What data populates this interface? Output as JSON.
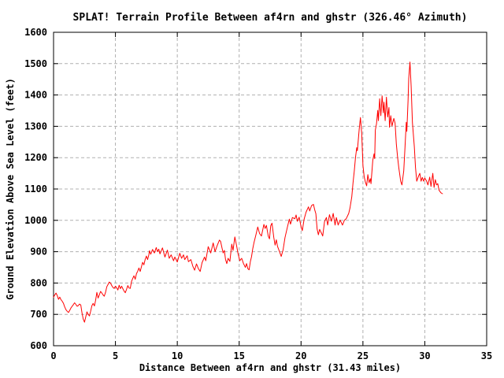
{
  "window": {
    "background": "#ffffff"
  },
  "chart_data": {
    "type": "line",
    "title": "SPLAT! Terrain Profile Between af4rn and ghstr (326.46° Azimuth)",
    "xlabel": "Distance Between af4rn and ghstr (31.43 miles)",
    "ylabel": "Ground Elevation Above Sea Level (feet)",
    "xlim": [
      0,
      35
    ],
    "ylim": [
      600,
      1600
    ],
    "xticks": [
      0,
      5,
      10,
      15,
      20,
      25,
      30,
      35
    ],
    "yticks": [
      600,
      700,
      800,
      900,
      1000,
      1100,
      1200,
      1300,
      1400,
      1500,
      1600
    ],
    "grid": true,
    "legend": "none",
    "colors": {
      "line": "#ff0000",
      "grid": "#b0b0b0",
      "border": "#000000",
      "text": "#000000",
      "background": "#ffffff"
    },
    "total_distance_miles": 31.43,
    "azimuth_deg": 326.46,
    "endpoints": [
      "af4rn",
      "ghstr"
    ],
    "series": [
      {
        "name": "terrain-elevation",
        "points": [
          [
            0,
            755
          ],
          [
            0.1,
            762
          ],
          [
            0.2,
            768
          ],
          [
            0.3,
            760
          ],
          [
            0.4,
            748
          ],
          [
            0.5,
            755
          ],
          [
            0.6,
            747
          ],
          [
            0.7,
            742
          ],
          [
            0.8,
            735
          ],
          [
            0.9,
            724
          ],
          [
            1.0,
            715
          ],
          [
            1.1,
            710
          ],
          [
            1.2,
            706
          ],
          [
            1.3,
            712
          ],
          [
            1.4,
            720
          ],
          [
            1.5,
            726
          ],
          [
            1.6,
            731
          ],
          [
            1.7,
            737
          ],
          [
            1.8,
            732
          ],
          [
            1.9,
            726
          ],
          [
            2.0,
            728
          ],
          [
            2.1,
            733
          ],
          [
            2.2,
            730
          ],
          [
            2.3,
            705
          ],
          [
            2.4,
            685
          ],
          [
            2.5,
            675
          ],
          [
            2.6,
            692
          ],
          [
            2.7,
            708
          ],
          [
            2.8,
            700
          ],
          [
            2.9,
            695
          ],
          [
            3.0,
            710
          ],
          [
            3.1,
            728
          ],
          [
            3.2,
            735
          ],
          [
            3.3,
            727
          ],
          [
            3.4,
            745
          ],
          [
            3.5,
            770
          ],
          [
            3.6,
            752
          ],
          [
            3.7,
            762
          ],
          [
            3.8,
            773
          ],
          [
            3.9,
            768
          ],
          [
            4.0,
            762
          ],
          [
            4.1,
            758
          ],
          [
            4.2,
            770
          ],
          [
            4.3,
            788
          ],
          [
            4.4,
            795
          ],
          [
            4.5,
            803
          ],
          [
            4.6,
            800
          ],
          [
            4.7,
            792
          ],
          [
            4.8,
            786
          ],
          [
            4.9,
            783
          ],
          [
            5.0,
            790
          ],
          [
            5.1,
            785
          ],
          [
            5.2,
            778
          ],
          [
            5.3,
            793
          ],
          [
            5.4,
            782
          ],
          [
            5.5,
            790
          ],
          [
            5.6,
            782
          ],
          [
            5.7,
            774
          ],
          [
            5.8,
            769
          ],
          [
            5.9,
            780
          ],
          [
            6.0,
            792
          ],
          [
            6.1,
            784
          ],
          [
            6.2,
            783
          ],
          [
            6.3,
            805
          ],
          [
            6.4,
            815
          ],
          [
            6.5,
            823
          ],
          [
            6.6,
            812
          ],
          [
            6.7,
            830
          ],
          [
            6.8,
            838
          ],
          [
            6.9,
            848
          ],
          [
            7.0,
            837
          ],
          [
            7.1,
            852
          ],
          [
            7.2,
            866
          ],
          [
            7.3,
            858
          ],
          [
            7.4,
            875
          ],
          [
            7.5,
            886
          ],
          [
            7.6,
            875
          ],
          [
            7.7,
            890
          ],
          [
            7.75,
            903
          ],
          [
            7.85,
            892
          ],
          [
            8.0,
            907
          ],
          [
            8.15,
            896
          ],
          [
            8.3,
            913
          ],
          [
            8.4,
            900
          ],
          [
            8.5,
            908
          ],
          [
            8.6,
            893
          ],
          [
            8.8,
            912
          ],
          [
            9.0,
            883
          ],
          [
            9.2,
            905
          ],
          [
            9.35,
            879
          ],
          [
            9.5,
            890
          ],
          [
            9.7,
            871
          ],
          [
            9.8,
            883
          ],
          [
            10.0,
            867
          ],
          [
            10.2,
            895
          ],
          [
            10.35,
            879
          ],
          [
            10.5,
            890
          ],
          [
            10.6,
            875
          ],
          [
            10.8,
            887
          ],
          [
            10.9,
            868
          ],
          [
            11.1,
            875
          ],
          [
            11.25,
            854
          ],
          [
            11.4,
            841
          ],
          [
            11.55,
            861
          ],
          [
            11.7,
            846
          ],
          [
            11.85,
            837
          ],
          [
            12.0,
            865
          ],
          [
            12.2,
            883
          ],
          [
            12.3,
            871
          ],
          [
            12.5,
            916
          ],
          [
            12.7,
            896
          ],
          [
            12.9,
            928
          ],
          [
            13.05,
            900
          ],
          [
            13.2,
            917
          ],
          [
            13.4,
            937
          ],
          [
            13.5,
            933
          ],
          [
            13.7,
            896
          ],
          [
            13.8,
            904
          ],
          [
            13.9,
            875
          ],
          [
            14.0,
            862
          ],
          [
            14.1,
            879
          ],
          [
            14.25,
            869
          ],
          [
            14.4,
            924
          ],
          [
            14.5,
            904
          ],
          [
            14.65,
            947
          ],
          [
            14.8,
            917
          ],
          [
            14.9,
            896
          ],
          [
            15.05,
            871
          ],
          [
            15.2,
            879
          ],
          [
            15.35,
            862
          ],
          [
            15.5,
            850
          ],
          [
            15.6,
            862
          ],
          [
            15.7,
            846
          ],
          [
            15.8,
            842
          ],
          [
            15.9,
            868
          ],
          [
            16.0,
            884
          ],
          [
            16.1,
            910
          ],
          [
            16.2,
            930
          ],
          [
            16.35,
            953
          ],
          [
            16.5,
            979
          ],
          [
            16.65,
            958
          ],
          [
            16.8,
            950
          ],
          [
            17.0,
            987
          ],
          [
            17.1,
            974
          ],
          [
            17.2,
            984
          ],
          [
            17.35,
            950
          ],
          [
            17.45,
            941
          ],
          [
            17.55,
            983
          ],
          [
            17.65,
            991
          ],
          [
            17.8,
            945
          ],
          [
            17.9,
            921
          ],
          [
            18.0,
            938
          ],
          [
            18.1,
            917
          ],
          [
            18.25,
            901
          ],
          [
            18.4,
            885
          ],
          [
            18.55,
            906
          ],
          [
            18.7,
            945
          ],
          [
            18.9,
            979
          ],
          [
            19.05,
            1004
          ],
          [
            19.15,
            988
          ],
          [
            19.3,
            1009
          ],
          [
            19.5,
            1005
          ],
          [
            19.6,
            1017
          ],
          [
            19.7,
            997
          ],
          [
            19.85,
            1010
          ],
          [
            20.0,
            980
          ],
          [
            20.1,
            967
          ],
          [
            20.25,
            1004
          ],
          [
            20.4,
            1026
          ],
          [
            20.6,
            1043
          ],
          [
            20.7,
            1030
          ],
          [
            20.85,
            1047
          ],
          [
            21.0,
            1051
          ],
          [
            21.1,
            1034
          ],
          [
            21.2,
            1021
          ],
          [
            21.3,
            972
          ],
          [
            21.4,
            954
          ],
          [
            21.5,
            971
          ],
          [
            21.65,
            959
          ],
          [
            21.75,
            950
          ],
          [
            21.9,
            996
          ],
          [
            22.05,
            1009
          ],
          [
            22.15,
            985
          ],
          [
            22.3,
            1018
          ],
          [
            22.45,
            997
          ],
          [
            22.6,
            1022
          ],
          [
            22.75,
            985
          ],
          [
            22.85,
            1009
          ],
          [
            23.0,
            985
          ],
          [
            23.15,
            1001
          ],
          [
            23.35,
            985
          ],
          [
            23.5,
            1000
          ],
          [
            23.65,
            1005
          ],
          [
            23.85,
            1022
          ],
          [
            23.95,
            1039
          ],
          [
            24.1,
            1075
          ],
          [
            24.2,
            1120
          ],
          [
            24.3,
            1158
          ],
          [
            24.4,
            1200
          ],
          [
            24.5,
            1232
          ],
          [
            24.55,
            1222
          ],
          [
            24.7,
            1290
          ],
          [
            24.8,
            1328
          ],
          [
            24.9,
            1278
          ],
          [
            25.0,
            1175
          ],
          [
            25.1,
            1140
          ],
          [
            25.2,
            1122
          ],
          [
            25.3,
            1110
          ],
          [
            25.4,
            1146
          ],
          [
            25.5,
            1120
          ],
          [
            25.6,
            1133
          ],
          [
            25.65,
            1117
          ],
          [
            25.8,
            1192
          ],
          [
            25.9,
            1212
          ],
          [
            25.95,
            1197
          ],
          [
            26.0,
            1288
          ],
          [
            26.1,
            1308
          ],
          [
            26.2,
            1351
          ],
          [
            26.25,
            1318
          ],
          [
            26.35,
            1388
          ],
          [
            26.45,
            1334
          ],
          [
            26.55,
            1397
          ],
          [
            26.65,
            1343
          ],
          [
            26.7,
            1377
          ],
          [
            26.8,
            1318
          ],
          [
            26.9,
            1393
          ],
          [
            27.0,
            1330
          ],
          [
            27.1,
            1360
          ],
          [
            27.15,
            1297
          ],
          [
            27.25,
            1334
          ],
          [
            27.35,
            1301
          ],
          [
            27.5,
            1325
          ],
          [
            27.6,
            1310
          ],
          [
            27.7,
            1243
          ],
          [
            27.8,
            1201
          ],
          [
            27.9,
            1168
          ],
          [
            28.05,
            1125
          ],
          [
            28.15,
            1113
          ],
          [
            28.3,
            1158
          ],
          [
            28.4,
            1234
          ],
          [
            28.5,
            1313
          ],
          [
            28.55,
            1284
          ],
          [
            28.65,
            1384
          ],
          [
            28.7,
            1452
          ],
          [
            28.8,
            1505
          ],
          [
            28.9,
            1427
          ],
          [
            29.0,
            1312
          ],
          [
            29.15,
            1236
          ],
          [
            29.25,
            1169
          ],
          [
            29.35,
            1125
          ],
          [
            29.5,
            1142
          ],
          [
            29.6,
            1150
          ],
          [
            29.7,
            1125
          ],
          [
            29.8,
            1137
          ],
          [
            29.9,
            1125
          ],
          [
            30.0,
            1135
          ],
          [
            30.15,
            1125
          ],
          [
            30.25,
            1113
          ],
          [
            30.4,
            1138
          ],
          [
            30.5,
            1108
          ],
          [
            30.65,
            1150
          ],
          [
            30.75,
            1105
          ],
          [
            30.85,
            1130
          ],
          [
            30.95,
            1113
          ],
          [
            31.05,
            1117
          ],
          [
            31.15,
            1096
          ],
          [
            31.3,
            1088
          ],
          [
            31.43,
            1085
          ]
        ]
      }
    ]
  }
}
